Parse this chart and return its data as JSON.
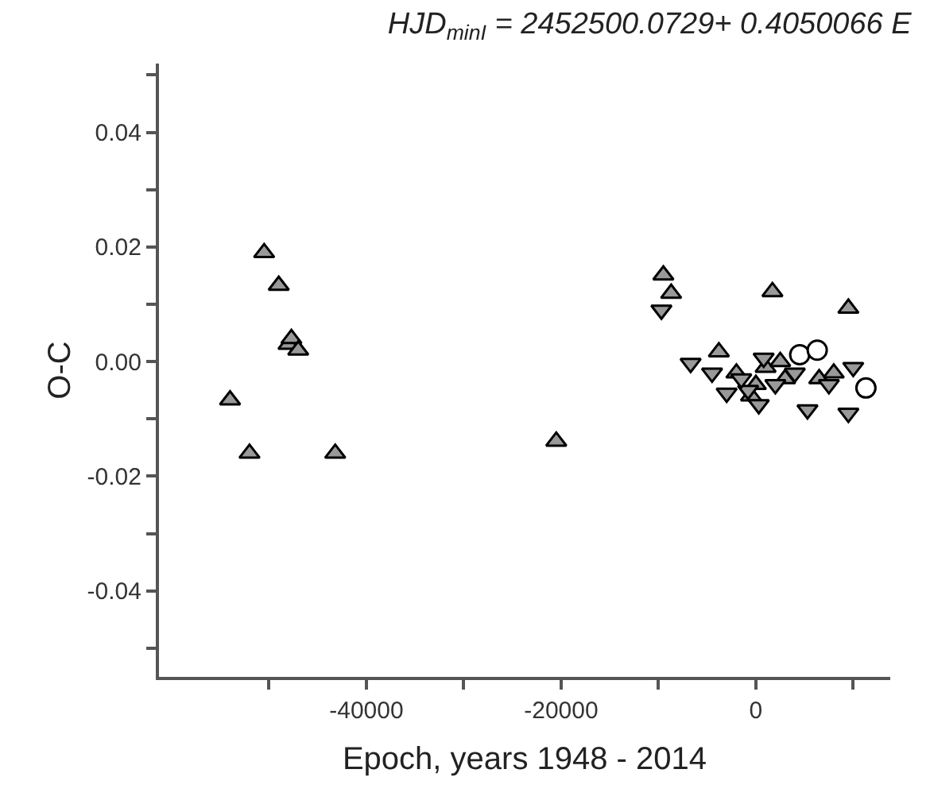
{
  "chart_data": {
    "type": "scatter",
    "title": "HJD$_{minI}$ = 2452500.0729+ 0.4050066 E",
    "xlabel": "Epoch, years 1948 - 2014",
    "ylabel": "O-C",
    "xlim": [
      -61300,
      13800
    ],
    "ylim": [
      -0.055,
      0.052
    ],
    "xticks": [
      {
        "value": -50000,
        "label": null
      },
      -40000,
      {
        "value": -30000,
        "label": null
      },
      -20000,
      {
        "value": -10000,
        "label": null
      },
      0,
      {
        "value": 10000,
        "label": null
      }
    ],
    "yticks": [
      {
        "value": -0.05,
        "label": null
      },
      {
        "value": -0.04,
        "label": "-0.04"
      },
      {
        "value": -0.03,
        "label": null
      },
      {
        "value": -0.02,
        "label": "-0.02"
      },
      {
        "value": -0.01,
        "label": null
      },
      {
        "value": 0,
        "label": "0.00"
      },
      {
        "value": 0.01,
        "label": null
      },
      {
        "value": 0.02,
        "label": "0.02"
      },
      {
        "value": 0.03,
        "label": null
      },
      {
        "value": 0.04,
        "label": "0.04"
      },
      {
        "value": 0.05,
        "label": null
      }
    ],
    "series": [
      {
        "marker": "triangle",
        "color": "#999999",
        "x": [
          -50500,
          -49000,
          -48000,
          -47700,
          -47000,
          -54000,
          -52000,
          -43200,
          -20500,
          -9500,
          -8700,
          1700,
          9500,
          -3800,
          -2000,
          0,
          1000,
          3000,
          6500,
          8000,
          -500,
          2500
        ],
        "values": [
          0.019,
          0.0133,
          0.003,
          0.004,
          0.002,
          -0.0067,
          -0.016,
          -0.016,
          -0.0139,
          0.0151,
          0.0119,
          0.0122,
          0.0093,
          0.0017,
          -0.002,
          -0.004,
          -0.001,
          -0.003,
          -0.003,
          -0.002,
          -0.006,
          0.0
        ]
      },
      {
        "marker": "triangle-down",
        "color": "#999999",
        "x": [
          -9700,
          -6700,
          5300,
          9500,
          300,
          -3000,
          800,
          -800,
          -4500,
          -1500,
          2000,
          4000,
          7500,
          10000
        ],
        "values": [
          0.009,
          -0.0003,
          -0.0084,
          -0.009,
          -0.0075,
          -0.0055,
          0.0006,
          -0.005,
          -0.002,
          -0.003,
          -0.004,
          -0.002,
          -0.004,
          -0.001
        ]
      },
      {
        "marker": "circle",
        "color": "#ffffff",
        "x": [
          4500,
          6300,
          11300
        ],
        "values": [
          0.0012,
          0.002,
          -0.0046
        ]
      }
    ]
  }
}
